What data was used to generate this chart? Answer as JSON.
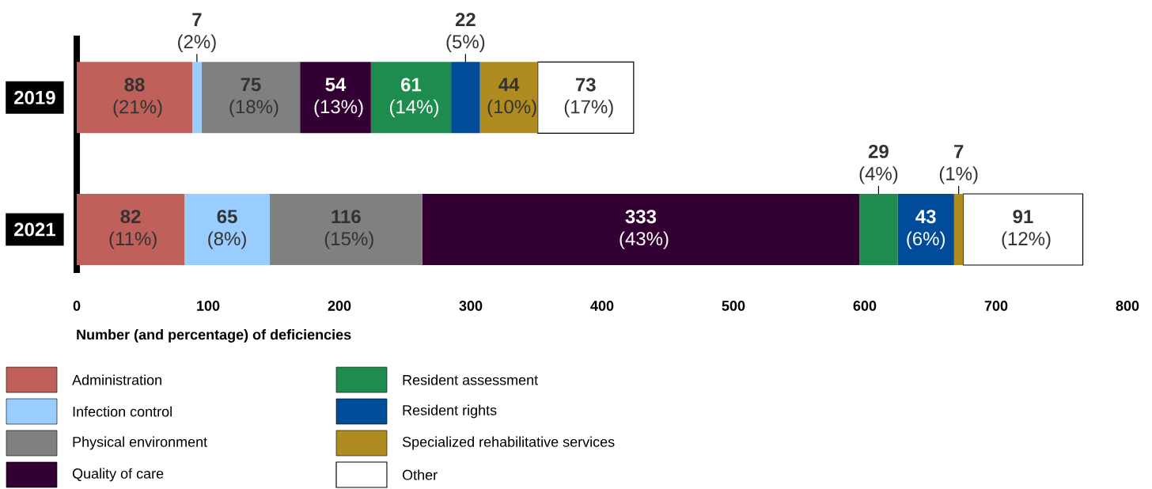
{
  "chart_data": {
    "type": "bar",
    "orientation": "horizontal",
    "stacked": true,
    "categories": [
      "2019",
      "2021"
    ],
    "series": [
      {
        "name": "Administration",
        "color": "#c0605a",
        "values": [
          88,
          82
        ],
        "value_labels": [
          "**88** (21%)",
          "**82** (11%)"
        ]
      },
      {
        "name": "Infection control",
        "color": "#99ccff",
        "values": [
          7,
          65
        ],
        "value_labels": [
          "**7** (2%)",
          "**65** (8%)"
        ]
      },
      {
        "name": "Physical environment",
        "color": "#808080",
        "values": [
          75,
          116
        ],
        "value_labels": [
          "**75** (18%)",
          "**116** (15%)"
        ]
      },
      {
        "name": "Quality of care",
        "color": "#330033",
        "values": [
          54,
          333
        ],
        "value_labels": [
          "**54** (13%)",
          "**333** (43%)"
        ]
      },
      {
        "name": "Resident assessment",
        "color": "#1e8c4e",
        "values": [
          61,
          29
        ],
        "value_labels": [
          "**61** (14%)",
          "**29** (4%)"
        ]
      },
      {
        "name": "Resident rights",
        "color": "#004c99",
        "values": [
          22,
          43
        ],
        "value_labels": [
          "**22** (5%)",
          "**43** (6%)"
        ]
      },
      {
        "name": "Specialized rehabilitative services",
        "color": "#b08c20",
        "values": [
          44,
          7
        ],
        "value_labels": [
          "**44** (10%)",
          "**7** (1%)"
        ]
      },
      {
        "name": "Other",
        "color": "#ffffff",
        "values": [
          73,
          91
        ],
        "value_labels": [
          "**73** (17%)",
          "**91** (12%)"
        ]
      }
    ],
    "xlim": [
      0,
      800
    ],
    "xticks": [
      0,
      100,
      200,
      300,
      400,
      500,
      600,
      700,
      800
    ],
    "xlabel": "Number (and percentage) of deficiencies",
    "legend": "bottom"
  }
}
